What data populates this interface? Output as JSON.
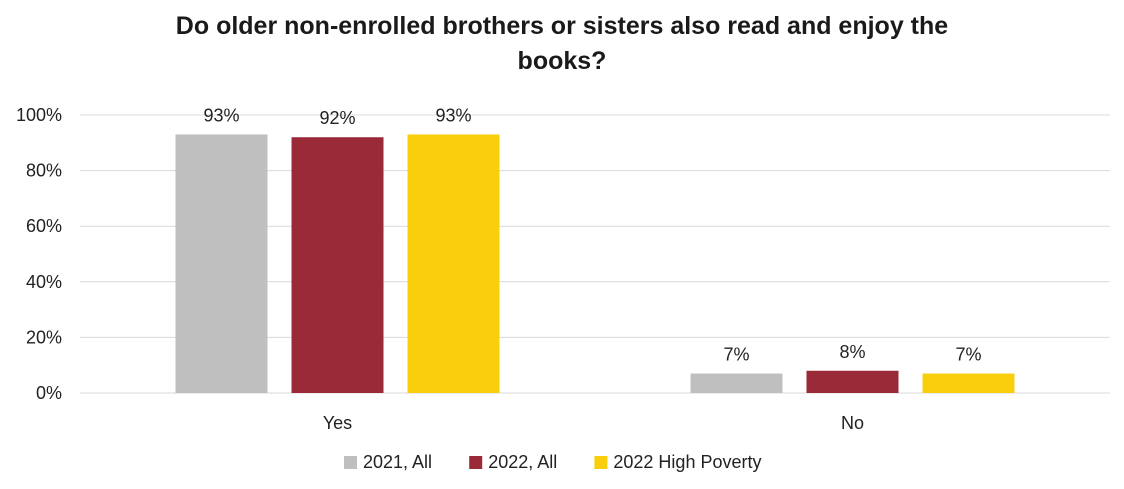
{
  "chart_data": {
    "type": "bar",
    "title_lines": [
      "Do older non-enrolled brothers or sisters also read and enjoy the",
      "books?"
    ],
    "categories": [
      "Yes",
      "No"
    ],
    "series": [
      {
        "name": "2021, All",
        "color": "#bfbfbf",
        "values": [
          93,
          7
        ],
        "labels": [
          "93%",
          "7%"
        ]
      },
      {
        "name": "2022, All",
        "color": "#9b2a38",
        "values": [
          92,
          8
        ],
        "labels": [
          "92%",
          "8%"
        ]
      },
      {
        "name": "2022 High Poverty",
        "color": "#f9ce0c",
        "values": [
          93,
          7
        ],
        "labels": [
          "93%",
          "7%"
        ]
      }
    ],
    "ylim": [
      0,
      100
    ],
    "yticks": [
      0,
      20,
      40,
      60,
      80,
      100
    ],
    "ytick_labels": [
      "0%",
      "20%",
      "40%",
      "60%",
      "80%",
      "100%"
    ],
    "grid": true,
    "legend_position": "bottom"
  }
}
